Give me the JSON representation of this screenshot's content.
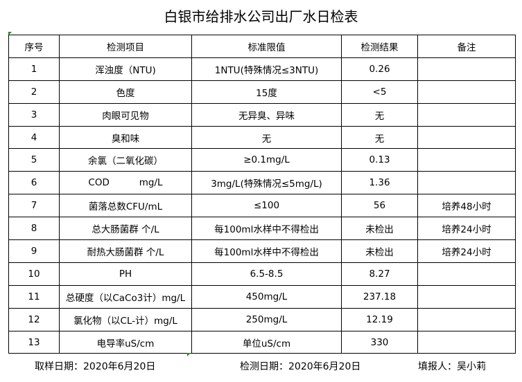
{
  "title": "白银市给排水公司出厂水日检表",
  "headers": [
    "序号",
    "检测项目",
    "标准限值",
    "检测结果",
    "备注"
  ],
  "rows": [
    [
      "1",
      "浑浊度（NTU)",
      "1NTU(特殊情况≤3NTU)",
      "0.26",
      ""
    ],
    [
      "2",
      "色度",
      "15度",
      "<5",
      ""
    ],
    [
      "3",
      "肉眼可见物",
      "无异臭、异味",
      "无",
      ""
    ],
    [
      "4",
      "臭和味",
      "无",
      "无",
      ""
    ],
    [
      "5",
      "余氯（二氧化碳）",
      "≥0.1mg/L",
      "0.13",
      ""
    ],
    [
      "6",
      "COD          mg/L",
      "3mg/L(特殊情况≤5mg/L)",
      "1.36",
      ""
    ],
    [
      "7",
      "菌落总数CFU/mL",
      "≤100",
      "56",
      "培养48小时"
    ],
    [
      "8",
      "总大肠菌群 个/L",
      "每100ml水样中不得检出",
      "未检出",
      "培养24小时"
    ],
    [
      "9",
      "耐热大肠菌群 个/L",
      "每100ml水样中不得检出",
      "未检出",
      "培养24小时"
    ],
    [
      "10",
      "PH",
      "6.5-8.5",
      "8.27",
      ""
    ],
    [
      "11",
      "总硬度（以CaCo3计）mg/L",
      "450mg/L",
      "237.18",
      ""
    ],
    [
      "12",
      "氯化物（以CL-计）mg/L",
      "250mg/L",
      "12.19",
      ""
    ],
    [
      "13",
      "电导率uS/cm",
      "单位uS/cm",
      "330",
      ""
    ]
  ],
  "footer": {
    "sampling_date": "取样日期：2020年6月20日",
    "testing_date": "检测日期：2020年6月20日",
    "reporter": "填报人：吴小莉"
  },
  "colors": {
    "cell_marker": "#1a8a1a"
  }
}
